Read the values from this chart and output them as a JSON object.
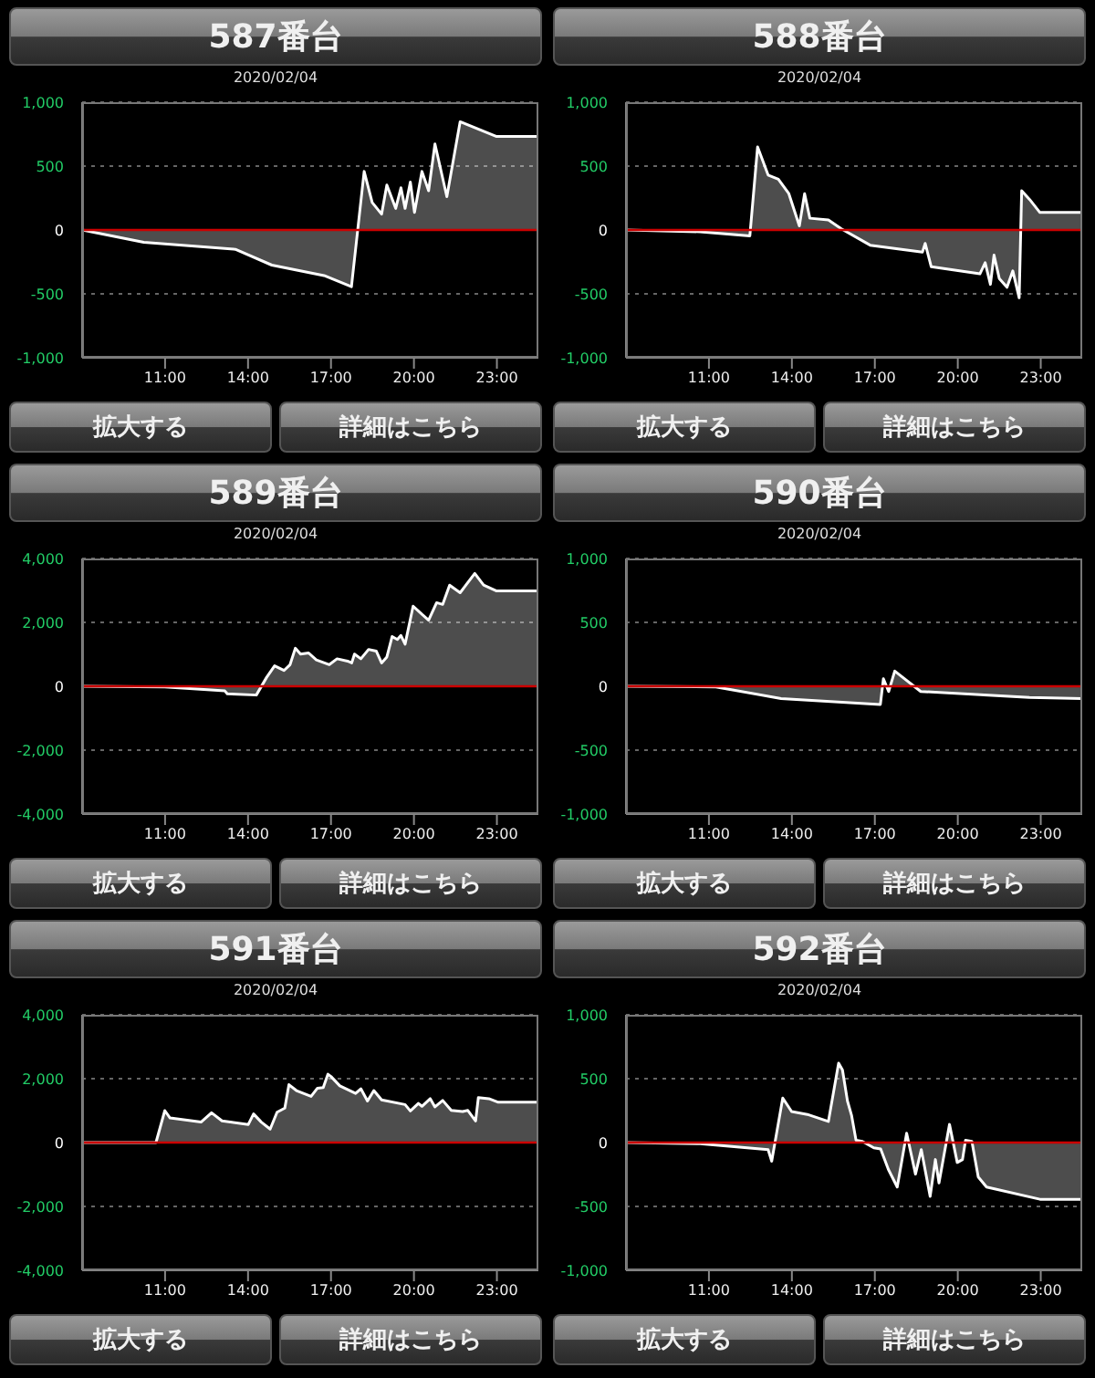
{
  "chart_data": [
    {
      "type": "area",
      "title": "587番台",
      "subtitle": "2020/02/04",
      "annotations": [
        "拡大する",
        "詳細はこちら"
      ],
      "x": [
        8,
        10.23,
        13.54,
        14.86,
        16.75,
        17.74,
        18.2,
        18.49,
        18.83,
        19.02,
        19.34,
        19.53,
        19.68,
        19.87,
        20.02,
        20.29,
        20.53,
        20.76,
        21.19,
        21.67,
        22.99,
        24.5
      ],
      "series": [
        {
          "color": "#ffffff",
          "values": [
            0,
            -96,
            -151,
            -275,
            -357,
            -444,
            458,
            215,
            124,
            352,
            169,
            330,
            169,
            375,
            137,
            458,
            307,
            673,
            261,
            847,
            732,
            732
          ]
        }
      ],
      "xlim": [
        8,
        24.5
      ],
      "xticks": [
        {
          "value": 11,
          "label": "11:00"
        },
        {
          "value": 14,
          "label": "14:00"
        },
        {
          "value": 17,
          "label": "17:00"
        },
        {
          "value": 20,
          "label": "20:00"
        },
        {
          "value": 23,
          "label": "23:00"
        }
      ],
      "ylim": [
        -1000,
        1000
      ],
      "yticks": [
        {
          "value": -1000,
          "label": "-1,000"
        },
        {
          "value": -500,
          "label": "-500"
        },
        {
          "value": 0,
          "label": "0"
        },
        {
          "value": 500,
          "label": "500"
        },
        {
          "value": 1000,
          "label": "1,000"
        }
      ],
      "grid": "y",
      "ref_lines": [
        {
          "axis": "y",
          "value": 0,
          "color": "#cc0000"
        }
      ]
    },
    {
      "type": "area",
      "title": "588番台",
      "subtitle": "2020/02/04",
      "annotations": [
        "拡大する",
        "詳細はこちら"
      ],
      "x": [
        8,
        10.68,
        12.48,
        12.76,
        13.14,
        13.51,
        13.89,
        14.27,
        14.46,
        14.65,
        15.32,
        15.79,
        16.83,
        18.72,
        18.82,
        19.04,
        20.8,
        20.99,
        21.18,
        21.31,
        21.5,
        21.78,
        21.99,
        22.22,
        22.31,
        22.6,
        22.97,
        24.5
      ],
      "series": [
        {
          "color": "#ffffff",
          "values": [
            0,
            -14,
            -46,
            650,
            430,
            398,
            284,
            32,
            284,
            92,
            78,
            9,
            -119,
            -174,
            -105,
            -288,
            -343,
            -256,
            -426,
            -197,
            -380,
            -449,
            -320,
            -531,
            307,
            238,
            137,
            137
          ]
        }
      ],
      "xlim": [
        8,
        24.5
      ],
      "xticks": [
        {
          "value": 11,
          "label": "11:00"
        },
        {
          "value": 14,
          "label": "14:00"
        },
        {
          "value": 17,
          "label": "17:00"
        },
        {
          "value": 20,
          "label": "20:00"
        },
        {
          "value": 23,
          "label": "23:00"
        }
      ],
      "ylim": [
        -1000,
        1000
      ],
      "yticks": [
        {
          "value": -1000,
          "label": "-1,000"
        },
        {
          "value": -500,
          "label": "-500"
        },
        {
          "value": 0,
          "label": "0"
        },
        {
          "value": 500,
          "label": "500"
        },
        {
          "value": 1000,
          "label": "1,000"
        }
      ],
      "grid": "y",
      "ref_lines": [
        {
          "axis": "y",
          "value": 0,
          "color": "#cc0000"
        }
      ]
    },
    {
      "type": "area",
      "title": "589番台",
      "subtitle": "2020/02/04",
      "annotations": [
        "拡大する",
        "詳細はこちら"
      ],
      "x": [
        8,
        10.99,
        13.16,
        13.25,
        14.3,
        14.67,
        14.96,
        15.3,
        15.52,
        15.71,
        15.9,
        16.19,
        16.47,
        16.94,
        17.22,
        17.6,
        17.75,
        17.85,
        18.08,
        18.36,
        18.64,
        18.83,
        19.02,
        19.21,
        19.4,
        19.53,
        19.68,
        19.97,
        20.29,
        20.53,
        20.82,
        21.04,
        21.29,
        21.67,
        22.2,
        22.52,
        22.99,
        24.5
      ],
      "series": [
        {
          "color": "#ffffff",
          "values": [
            0,
            -20,
            -146,
            -238,
            -275,
            275,
            640,
            494,
            677,
            1190,
            1007,
            1043,
            824,
            677,
            860,
            787,
            732,
            1007,
            860,
            1153,
            1098,
            732,
            915,
            1556,
            1464,
            1592,
            1318,
            2507,
            2251,
            2068,
            2617,
            2562,
            3166,
            2928,
            3532,
            3166,
            2983,
            2983
          ]
        }
      ],
      "xlim": [
        8,
        24.5
      ],
      "xticks": [
        {
          "value": 11,
          "label": "11:00"
        },
        {
          "value": 14,
          "label": "14:00"
        },
        {
          "value": 17,
          "label": "17:00"
        },
        {
          "value": 20,
          "label": "20:00"
        },
        {
          "value": 23,
          "label": "23:00"
        }
      ],
      "ylim": [
        -4000,
        4000
      ],
      "yticks": [
        {
          "value": -4000,
          "label": "-4,000"
        },
        {
          "value": -2000,
          "label": "-2,000"
        },
        {
          "value": 0,
          "label": "0"
        },
        {
          "value": 2000,
          "label": "2,000"
        },
        {
          "value": 4000,
          "label": "4,000"
        }
      ],
      "grid": "y",
      "ref_lines": [
        {
          "axis": "y",
          "value": 0,
          "color": "#cc0000"
        }
      ]
    },
    {
      "type": "area",
      "title": "590番台",
      "subtitle": "2020/02/04",
      "annotations": [
        "拡大する",
        "詳細はこちら"
      ],
      "x": [
        8,
        11.25,
        13.61,
        17.2,
        17.31,
        17.5,
        17.72,
        18.66,
        22.59,
        24.5
      ],
      "series": [
        {
          "color": "#ffffff",
          "values": [
            0,
            -5,
            -96,
            -142,
            59,
            -41,
            119,
            -41,
            -87,
            -96
          ]
        }
      ],
      "xlim": [
        8,
        24.5
      ],
      "xticks": [
        {
          "value": 11,
          "label": "11:00"
        },
        {
          "value": 14,
          "label": "14:00"
        },
        {
          "value": 17,
          "label": "17:00"
        },
        {
          "value": 20,
          "label": "20:00"
        },
        {
          "value": 23,
          "label": "23:00"
        }
      ],
      "ylim": [
        -1000,
        1000
      ],
      "yticks": [
        {
          "value": -1000,
          "label": "-1,000"
        },
        {
          "value": -500,
          "label": "-500"
        },
        {
          "value": 0,
          "label": "0"
        },
        {
          "value": 500,
          "label": "500"
        },
        {
          "value": 1000,
          "label": "1,000"
        }
      ],
      "grid": "y",
      "ref_lines": [
        {
          "axis": "y",
          "value": 0,
          "color": "#cc0000"
        }
      ]
    },
    {
      "type": "area",
      "title": "591番台",
      "subtitle": "2020/02/04",
      "annotations": [
        "拡大する",
        "詳細はこちら"
      ],
      "x": [
        8,
        10.67,
        10.99,
        11.18,
        12.3,
        12.68,
        13.06,
        14.01,
        14.2,
        14.48,
        14.8,
        15.05,
        15.33,
        15.48,
        15.75,
        16.28,
        16.51,
        16.72,
        16.89,
        17,
        17.32,
        17.89,
        18.08,
        18.32,
        18.55,
        18.83,
        19.68,
        19.87,
        20.16,
        20.29,
        20.59,
        20.76,
        21.04,
        21.35,
        21.76,
        21.95,
        22.23,
        22.33,
        22.71,
        23.05,
        24.5
      ],
      "series": [
        {
          "color": "#ffffff",
          "values": [
            0,
            0,
            1000,
            770,
            640,
            933,
            677,
            567,
            897,
            640,
            421,
            951,
            1080,
            1812,
            1628,
            1445,
            1702,
            1720,
            2141,
            2068,
            1775,
            1537,
            1684,
            1299,
            1629,
            1336,
            1189,
            988,
            1226,
            1135,
            1373,
            1116,
            1318,
            1006,
            970,
            1006,
            677,
            1409,
            1373,
            1263,
            1263
          ]
        }
      ],
      "xlim": [
        8,
        24.5
      ],
      "xticks": [
        {
          "value": 11,
          "label": "11:00"
        },
        {
          "value": 14,
          "label": "14:00"
        },
        {
          "value": 17,
          "label": "17:00"
        },
        {
          "value": 20,
          "label": "20:00"
        },
        {
          "value": 23,
          "label": "23:00"
        }
      ],
      "ylim": [
        -4000,
        4000
      ],
      "yticks": [
        {
          "value": -4000,
          "label": "-4,000"
        },
        {
          "value": -2000,
          "label": "-2,000"
        },
        {
          "value": 0,
          "label": "0"
        },
        {
          "value": 2000,
          "label": "2,000"
        },
        {
          "value": 4000,
          "label": "4,000"
        }
      ],
      "grid": "y",
      "ref_lines": [
        {
          "axis": "y",
          "value": 0,
          "color": "#cc0000"
        }
      ]
    },
    {
      "type": "area",
      "title": "592番台",
      "subtitle": "2020/02/04",
      "annotations": [
        "拡大する",
        "詳細はこちら"
      ],
      "x": [
        8,
        10.68,
        13.14,
        13.27,
        13.67,
        13.99,
        14.56,
        15.32,
        15.69,
        15.83,
        16.01,
        16.16,
        16.32,
        16.55,
        16.96,
        17.21,
        17.49,
        17.81,
        18.15,
        18.47,
        18.68,
        19,
        19.19,
        19.32,
        19.7,
        19.98,
        20.17,
        20.28,
        20.51,
        20.74,
        21.04,
        22.97,
        24.5
      ],
      "series": [
        {
          "color": "#ffffff",
          "values": [
            0,
            -9,
            -55,
            -146,
            348,
            243,
            220,
            165,
            622,
            568,
            325,
            211,
            18,
            9,
            -41,
            -50,
            -211,
            -348,
            73,
            -247,
            -55,
            -421,
            -133,
            -316,
            142,
            -156,
            -133,
            18,
            9,
            -270,
            -348,
            -444,
            -444
          ]
        }
      ],
      "xlim": [
        8,
        24.5
      ],
      "xticks": [
        {
          "value": 11,
          "label": "11:00"
        },
        {
          "value": 14,
          "label": "14:00"
        },
        {
          "value": 17,
          "label": "17:00"
        },
        {
          "value": 20,
          "label": "20:00"
        },
        {
          "value": 23,
          "label": "23:00"
        }
      ],
      "ylim": [
        -1000,
        1000
      ],
      "yticks": [
        {
          "value": -1000,
          "label": "-1,000"
        },
        {
          "value": -500,
          "label": "-500"
        },
        {
          "value": 0,
          "label": "0"
        },
        {
          "value": 500,
          "label": "500"
        },
        {
          "value": 1000,
          "label": "1,000"
        }
      ],
      "grid": "y",
      "ref_lines": [
        {
          "axis": "y",
          "value": 0,
          "color": "#cc0000"
        }
      ]
    }
  ]
}
